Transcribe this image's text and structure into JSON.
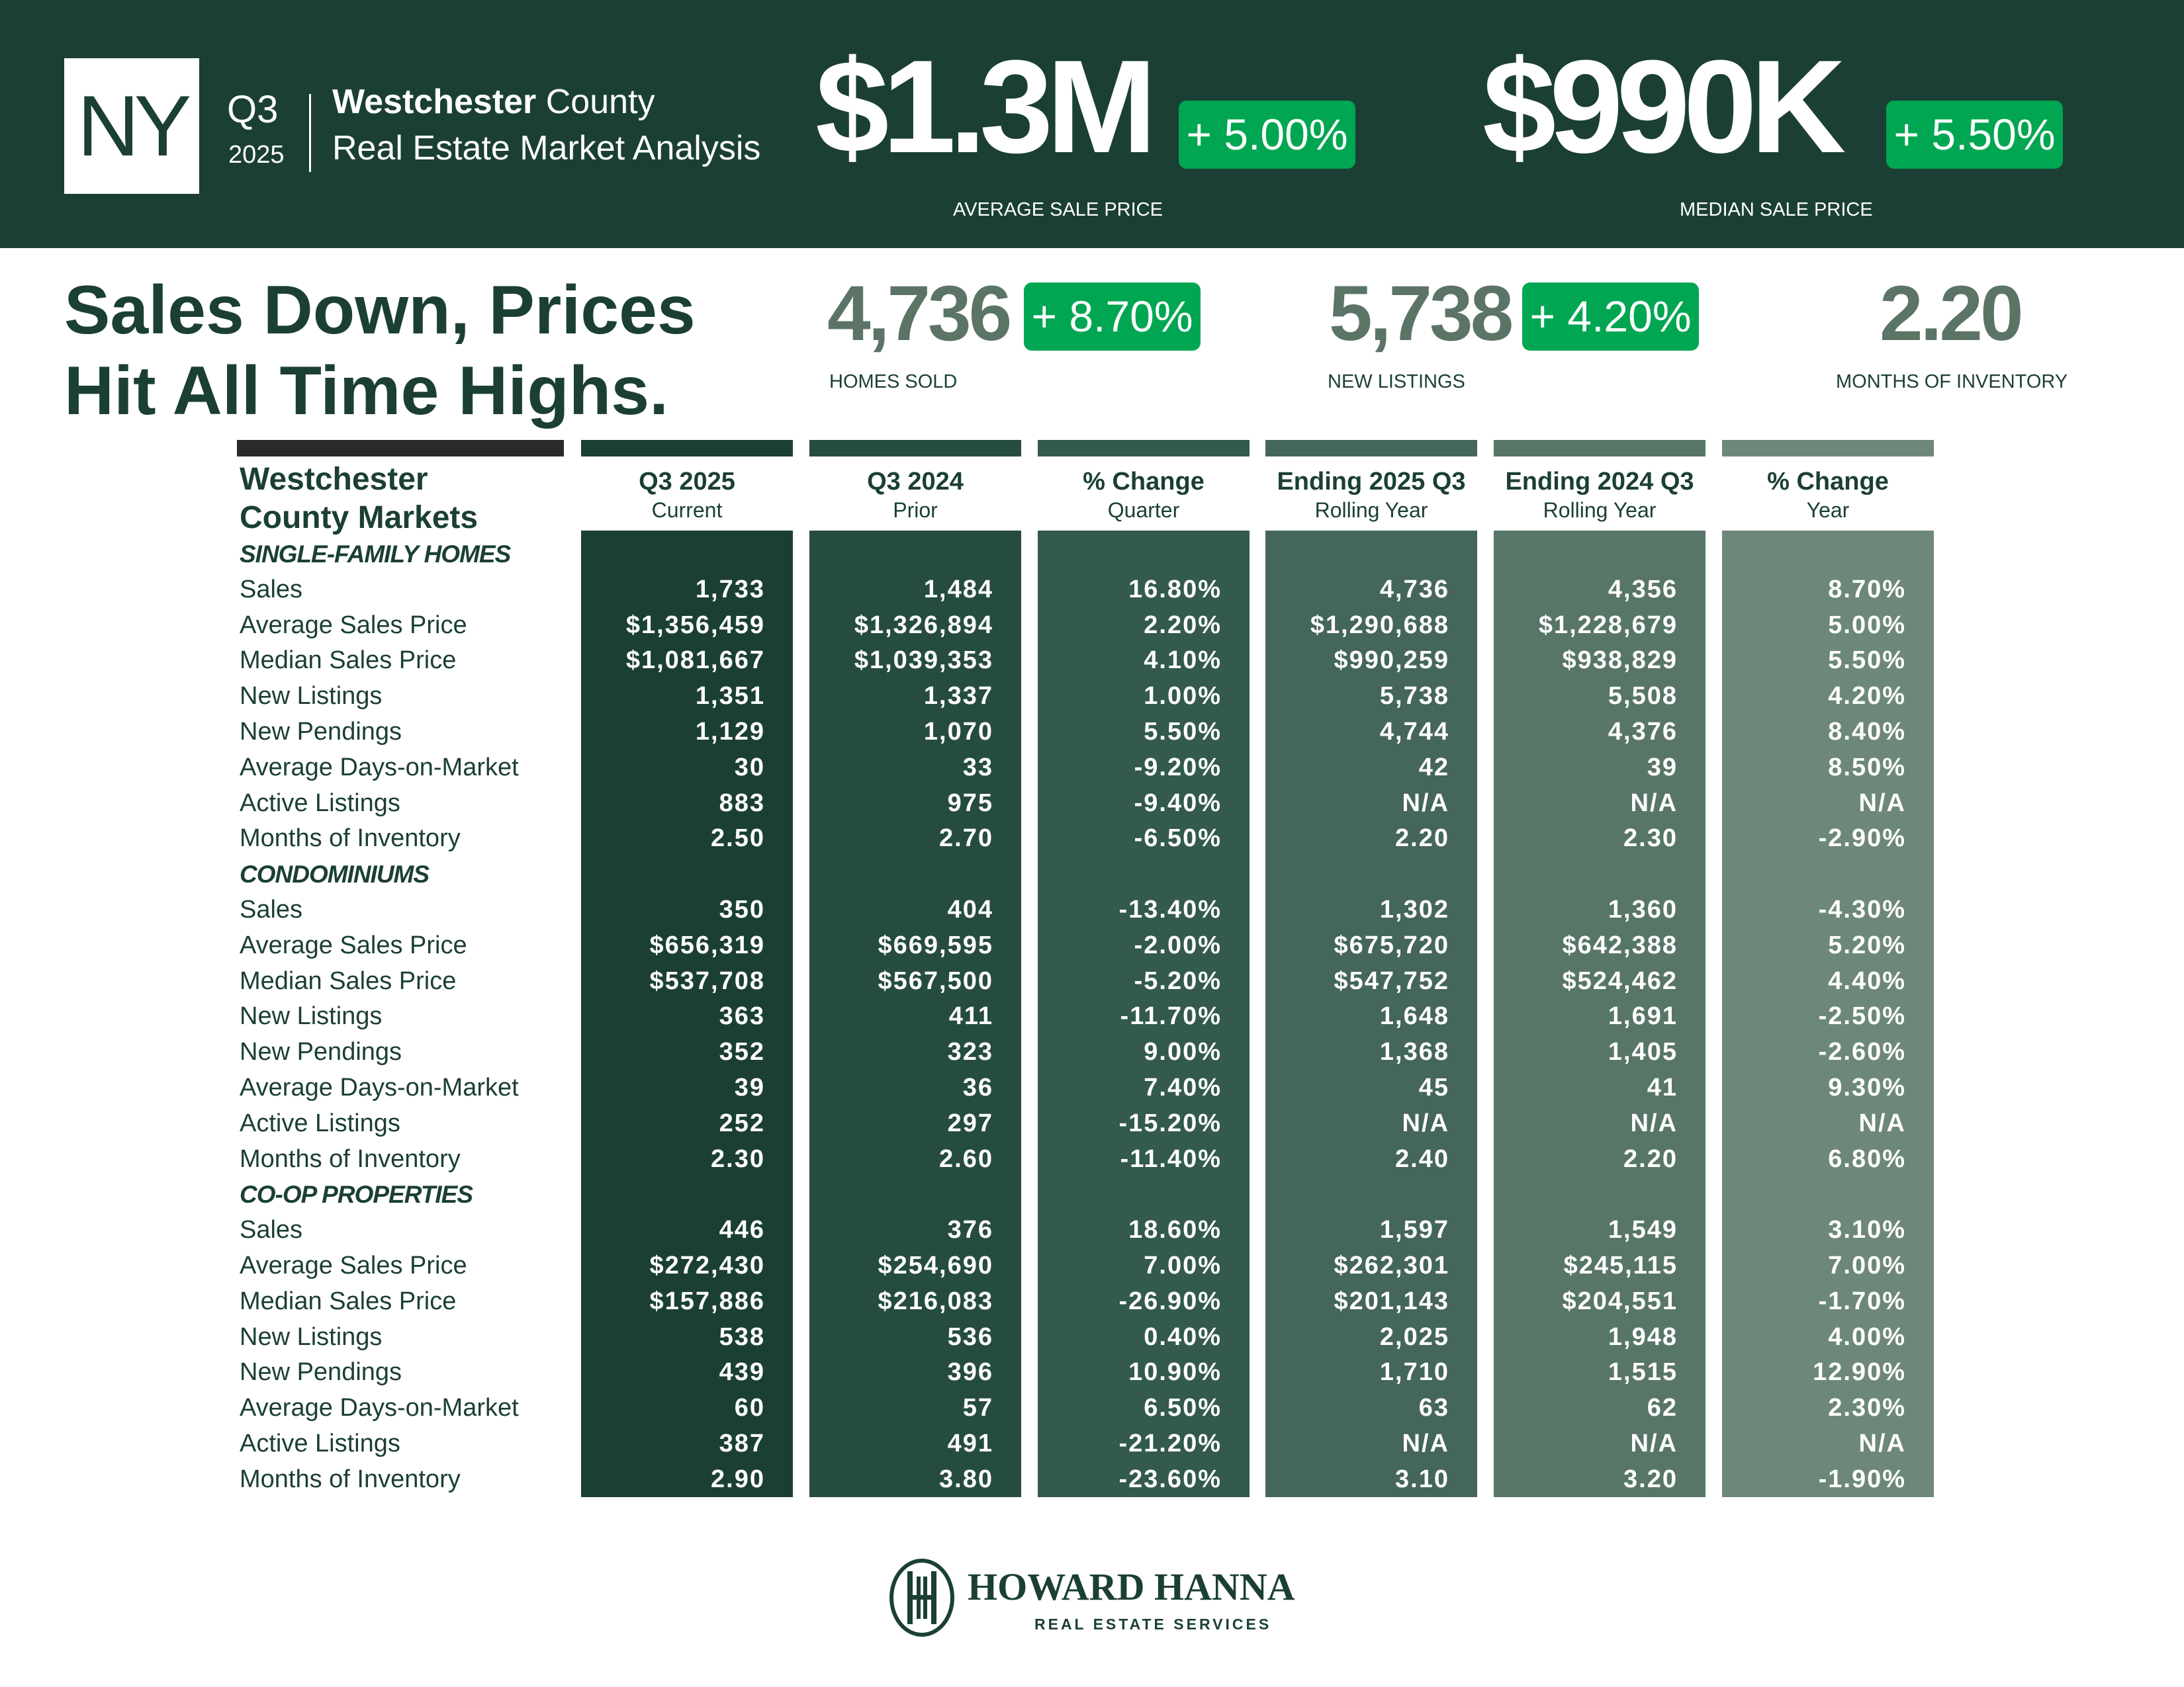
{
  "header": {
    "state": "NY",
    "quarter": "Q3",
    "year": "2025",
    "county_bold": "Westchester",
    "county_rest": " County",
    "subtitle": "Real Estate Market Analysis",
    "avg_price": "$1.3M",
    "avg_change": "+ 5.00%",
    "avg_label": "AVERAGE SALE PRICE",
    "median_price": "$990K",
    "median_change": "+ 5.50%",
    "median_label": "MEDIAN SALE PRICE"
  },
  "summary": {
    "headline_1": "Sales Down, Prices",
    "headline_2": "Hit All Time Highs.",
    "homes_sold": "4,736",
    "homes_sold_change": "+ 8.70%",
    "homes_sold_label": "HOMES SOLD",
    "new_listings": "5,738",
    "new_listings_change": "+ 4.20%",
    "new_listings_label": "NEW LISTINGS",
    "months_inventory": "2.20",
    "months_inventory_label": "MONTHS OF INVENTORY"
  },
  "colors": {
    "accent": "#00a651",
    "brand": "#1b3f35",
    "columns": [
      "#1b3f35",
      "#264c40",
      "#335a4c",
      "#45665a",
      "#587667",
      "#6d8878"
    ]
  },
  "table": {
    "title_1": "Westchester",
    "title_2": "County Markets",
    "columns": [
      {
        "title": "Q3 2025",
        "sub": "Current"
      },
      {
        "title": "Q3 2024",
        "sub": "Prior"
      },
      {
        "title": "% Change",
        "sub": "Quarter"
      },
      {
        "title": "Ending 2025 Q3",
        "sub": "Rolling Year"
      },
      {
        "title": "Ending 2024 Q3",
        "sub": "Rolling Year"
      },
      {
        "title": "% Change",
        "sub": "Year"
      }
    ],
    "sections": [
      {
        "name": "SINGLE-FAMILY HOMES",
        "rows": [
          {
            "label": "Sales",
            "values": [
              "1,733",
              "1,484",
              "16.80%",
              "4,736",
              "4,356",
              "8.70%"
            ]
          },
          {
            "label": "Average Sales Price",
            "values": [
              "$1,356,459",
              "$1,326,894",
              "2.20%",
              "$1,290,688",
              "$1,228,679",
              "5.00%"
            ]
          },
          {
            "label": "Median Sales Price",
            "values": [
              "$1,081,667",
              "$1,039,353",
              "4.10%",
              "$990,259",
              "$938,829",
              "5.50%"
            ]
          },
          {
            "label": "New Listings",
            "values": [
              "1,351",
              "1,337",
              "1.00%",
              "5,738",
              "5,508",
              "4.20%"
            ]
          },
          {
            "label": "New Pendings",
            "values": [
              "1,129",
              "1,070",
              "5.50%",
              "4,744",
              "4,376",
              "8.40%"
            ]
          },
          {
            "label": "Average Days-on-Market",
            "values": [
              "30",
              "33",
              "-9.20%",
              "42",
              "39",
              "8.50%"
            ]
          },
          {
            "label": "Active Listings",
            "values": [
              "883",
              "975",
              "-9.40%",
              "N/A",
              "N/A",
              "N/A"
            ]
          },
          {
            "label": "Months of Inventory",
            "values": [
              "2.50",
              "2.70",
              "-6.50%",
              "2.20",
              "2.30",
              "-2.90%"
            ]
          }
        ]
      },
      {
        "name": "CONDOMINIUMS",
        "rows": [
          {
            "label": "Sales",
            "values": [
              "350",
              "404",
              "-13.40%",
              "1,302",
              "1,360",
              "-4.30%"
            ]
          },
          {
            "label": "Average Sales Price",
            "values": [
              "$656,319",
              "$669,595",
              "-2.00%",
              "$675,720",
              "$642,388",
              "5.20%"
            ]
          },
          {
            "label": "Median Sales Price",
            "values": [
              "$537,708",
              "$567,500",
              "-5.20%",
              "$547,752",
              "$524,462",
              "4.40%"
            ]
          },
          {
            "label": "New Listings",
            "values": [
              "363",
              "411",
              "-11.70%",
              "1,648",
              "1,691",
              "-2.50%"
            ]
          },
          {
            "label": "New Pendings",
            "values": [
              "352",
              "323",
              "9.00%",
              "1,368",
              "1,405",
              "-2.60%"
            ]
          },
          {
            "label": "Average Days-on-Market",
            "values": [
              "39",
              "36",
              "7.40%",
              "45",
              "41",
              "9.30%"
            ]
          },
          {
            "label": "Active Listings",
            "values": [
              "252",
              "297",
              "-15.20%",
              "N/A",
              "N/A",
              "N/A"
            ]
          },
          {
            "label": "Months of Inventory",
            "values": [
              "2.30",
              "2.60",
              "-11.40%",
              "2.40",
              "2.20",
              "6.80%"
            ]
          }
        ]
      },
      {
        "name": "CO-OP PROPERTIES",
        "rows": [
          {
            "label": "Sales",
            "values": [
              "446",
              "376",
              "18.60%",
              "1,597",
              "1,549",
              "3.10%"
            ]
          },
          {
            "label": "Average Sales Price",
            "values": [
              "$272,430",
              "$254,690",
              "7.00%",
              "$262,301",
              "$245,115",
              "7.00%"
            ]
          },
          {
            "label": "Median Sales Price",
            "values": [
              "$157,886",
              "$216,083",
              "-26.90%",
              "$201,143",
              "$204,551",
              "-1.70%"
            ]
          },
          {
            "label": "New Listings",
            "values": [
              "538",
              "536",
              "0.40%",
              "2,025",
              "1,948",
              "4.00%"
            ]
          },
          {
            "label": "New Pendings",
            "values": [
              "439",
              "396",
              "10.90%",
              "1,710",
              "1,515",
              "12.90%"
            ]
          },
          {
            "label": "Average Days-on-Market",
            "values": [
              "60",
              "57",
              "6.50%",
              "63",
              "62",
              "2.30%"
            ]
          },
          {
            "label": "Active Listings",
            "values": [
              "387",
              "491",
              "-21.20%",
              "N/A",
              "N/A",
              "N/A"
            ]
          },
          {
            "label": "Months of Inventory",
            "values": [
              "2.90",
              "3.80",
              "-23.60%",
              "3.10",
              "3.20",
              "-1.90%"
            ]
          }
        ]
      }
    ]
  },
  "footer": {
    "brand": "HOWARD HANNA",
    "tagline": "REAL ESTATE SERVICES"
  }
}
